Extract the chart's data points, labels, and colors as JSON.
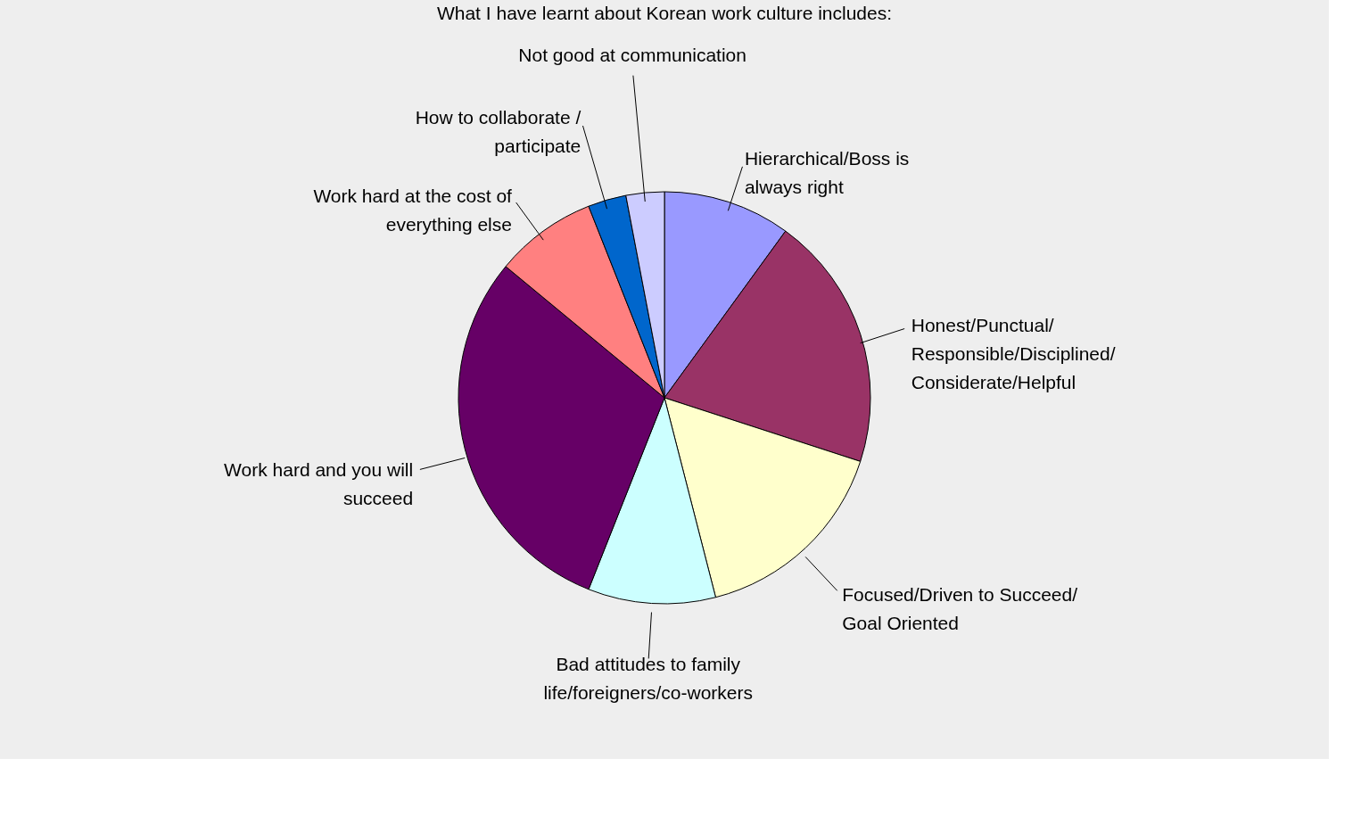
{
  "chart_data": {
    "type": "pie",
    "title": "What I have learnt about Korean work culture includes:",
    "categories": [
      "Hierarchical/Boss is always right",
      "Honest/Punctual/Responsible/Disciplined/Considerate/Helpful",
      "Focused/Driven to Succeed/Goal Oriented",
      "Bad attitudes to family life/foreigners/co-workers",
      "Work hard and you will succeed",
      "Work hard at the cost of everything else",
      "How to collaborate / participate",
      "Not good at communication"
    ],
    "values": [
      10,
      20,
      16,
      10,
      30,
      8,
      3,
      3
    ],
    "colors": [
      "#9999ff",
      "#993366",
      "#ffffcc",
      "#ccffff",
      "#660066",
      "#ff8080",
      "#0066cc",
      "#ccccff"
    ]
  }
}
